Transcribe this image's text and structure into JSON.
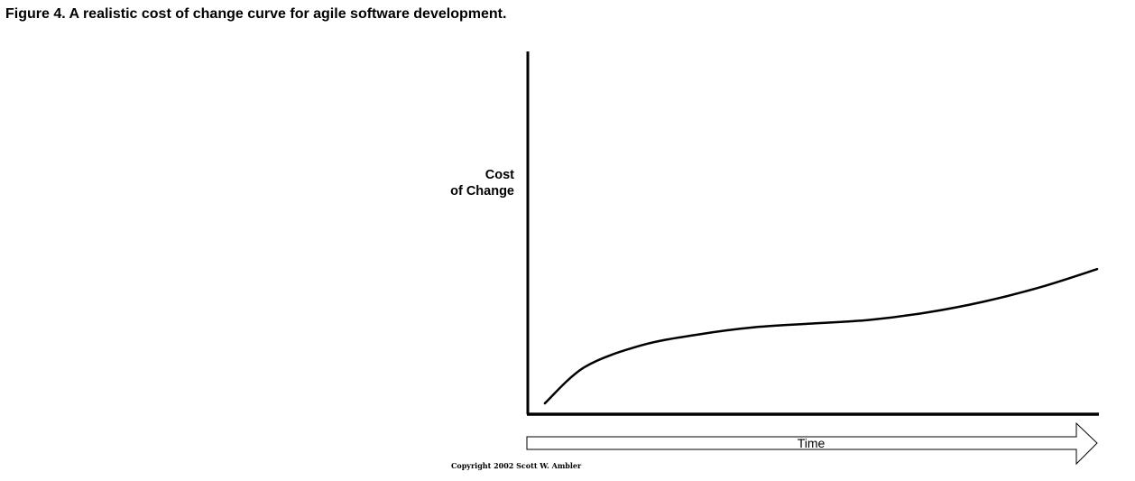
{
  "figure": {
    "caption": "Figure 4. A realistic cost of change curve for agile software development.",
    "copyright": "Copyright 2002 Scott W. Ambler"
  },
  "chart_data": {
    "type": "line",
    "title": "",
    "xlabel": "Time",
    "ylabel_lines": [
      "Cost",
      "of Change"
    ],
    "axis_ticks": false,
    "grid": false,
    "legend": "none",
    "xlim": [
      0,
      1
    ],
    "ylim": [
      0,
      1
    ],
    "series": [
      {
        "x": [
          0.03,
          0.1,
          0.2,
          0.3,
          0.4,
          0.5,
          0.6,
          0.7,
          0.8,
          0.9,
          1.0
        ],
        "y": [
          0.03,
          0.13,
          0.19,
          0.22,
          0.24,
          0.25,
          0.26,
          0.28,
          0.31,
          0.35,
          0.4
        ]
      }
    ],
    "colors": {
      "line": "#000000",
      "axis": "#000000",
      "arrow_fill": "#ffffff"
    }
  }
}
